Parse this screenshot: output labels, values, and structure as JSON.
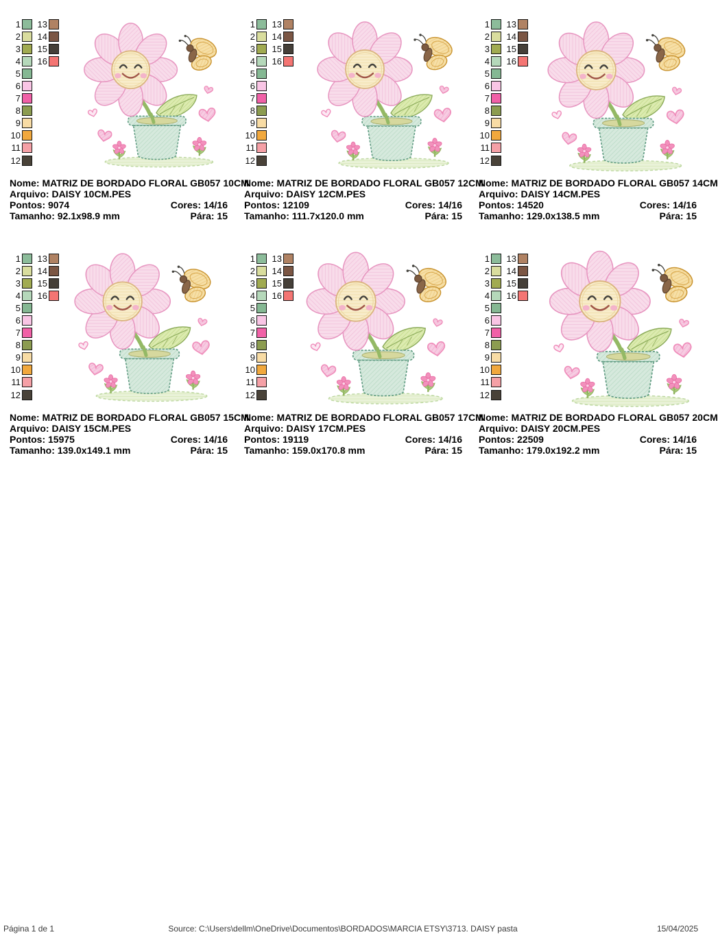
{
  "labels": {
    "nome": "Nome:",
    "arquivo": "Arquivo:",
    "pontos": "Pontos:",
    "cores": "Cores:",
    "tamanho": "Tamanho:",
    "para": "Pára:"
  },
  "palette": {
    "column1_numbers": [
      1,
      2,
      3,
      4,
      5,
      6,
      7,
      8,
      9,
      10,
      11,
      12
    ],
    "column2_numbers": [
      13,
      14,
      15,
      16
    ],
    "colors": [
      "#8cbc9a",
      "#d9dd9e",
      "#a1ab51",
      "#b5d8ba",
      "#85b893",
      "#f9c5e5",
      "#f161a7",
      "#8c9c50",
      "#f8dca5",
      "#f1a83d",
      "#f5a0a6",
      "#494238",
      "#b08263",
      "#7b5644",
      "#453f38",
      "#f47573"
    ]
  },
  "panels": [
    {
      "nome": "MATRIZ DE BORDADO FLORAL GB057 10CM",
      "arquivo": "DAISY 10CM.PES",
      "pontos": "9074",
      "cores": "14/16",
      "tamanho": "92.1x98.9 mm",
      "para": "15"
    },
    {
      "nome": "MATRIZ DE BORDADO FLORAL GB057 12CM",
      "arquivo": "DAISY 12CM.PES",
      "pontos": "12109",
      "cores": "14/16",
      "tamanho": "111.7x120.0 mm",
      "para": "15"
    },
    {
      "nome": "MATRIZ DE BORDADO FLORAL GB057 14CM",
      "arquivo": "DAISY 14CM.PES",
      "pontos": "14520",
      "cores": "14/16",
      "tamanho": "129.0x138.5 mm",
      "para": "15"
    },
    {
      "nome": "MATRIZ DE BORDADO FLORAL GB057 15CM",
      "arquivo": "DAISY 15CM.PES",
      "pontos": "15975",
      "cores": "14/16",
      "tamanho": "139.0x149.1 mm",
      "para": "15"
    },
    {
      "nome": "MATRIZ DE BORDADO FLORAL GB057 17CM",
      "arquivo": "DAISY 17CM.PES",
      "pontos": "19119",
      "cores": "14/16",
      "tamanho": "159.0x170.8 mm",
      "para": "15"
    },
    {
      "nome": "MATRIZ DE BORDADO FLORAL GB057 20CM",
      "arquivo": "DAISY 20CM.PES",
      "pontos": "22509",
      "cores": "14/16",
      "tamanho": "179.0x192.2 mm",
      "para": "15"
    }
  ],
  "design": {
    "description": "smiling daisy flower in a pot with butterfly, hearts and small flowers (embroidery preview)",
    "colors": {
      "petal": "#f8dcea",
      "petal_outline": "#e795c0",
      "face": "#f8ecca",
      "face_outline": "#d9b37c",
      "eyes": "#43423d",
      "smile": "#a05648",
      "blush": "#f3aecb",
      "stem": "#94b965",
      "leaf": "#dcebb0",
      "leaf_outline": "#8aaa58",
      "pot": "#d6e9dd",
      "pot_outline": "#5f9b82",
      "soil": "#d6d89e",
      "butterfly_wing": "#f6dfa6",
      "butterfly_wing_outline": "#c8922e",
      "butterfly_body": "#8a6648",
      "heart": "#f7cce2",
      "heart_outline": "#ef8cba",
      "grass": "#e9f2d8",
      "grass_outline": "#bcd79f",
      "small_flower": "#f291bc"
    }
  },
  "footer": {
    "page_label": "Página 1 de 1",
    "source_label": "Source:",
    "source_path": "C:\\Users\\dellm\\OneDrive\\Documentos\\BORDADOS\\MARCIA ETSY\\3713. DAISY pasta",
    "date": "15/04/2025"
  }
}
